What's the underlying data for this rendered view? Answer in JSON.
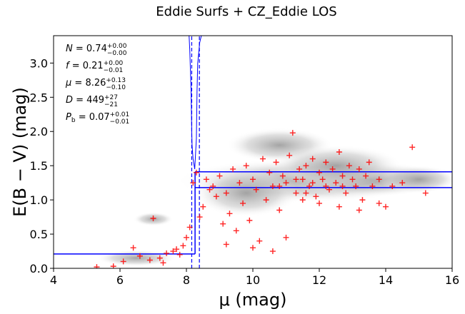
{
  "chart_data": {
    "type": "scatter",
    "title": "Eddie Surfs + CZ_Eddie LOS",
    "xlabel": "μ (mag)",
    "ylabel": "E(B − V) (mag)",
    "xlim": [
      4,
      16
    ],
    "ylim": [
      0,
      3.4
    ],
    "xticks": [
      4,
      6,
      8,
      10,
      12,
      14,
      16
    ],
    "yticks": [
      0.0,
      0.5,
      1.0,
      1.5,
      2.0,
      2.5,
      3.0
    ],
    "grid": false,
    "annotations": [
      {
        "sym": "N",
        "val": "0.74",
        "up": "+0.00",
        "lo": "−0.00"
      },
      {
        "sym": "f",
        "val": "0.21",
        "up": "+0.00",
        "lo": "−0.01"
      },
      {
        "sym": "μ",
        "val": "8.26",
        "up": "+0.13",
        "lo": "−0.10"
      },
      {
        "sym": "D",
        "val": "449",
        "up": "+27",
        "lo": "−21"
      },
      {
        "sym": "P_b",
        "val": "0.07",
        "up": "+0.01",
        "lo": "−0.01"
      }
    ],
    "step_model": {
      "color": "#0000ff",
      "mu": 8.26,
      "mu_lo": 8.16,
      "mu_hi": 8.39,
      "foreground": 0.21,
      "levels": [
        1.41,
        1.18
      ],
      "xend": 16
    },
    "posterior_curve": {
      "color": "#0000ff",
      "points": [
        [
          8.08,
          3.4
        ],
        [
          8.1,
          3.2
        ],
        [
          8.12,
          2.9
        ],
        [
          8.14,
          2.6
        ],
        [
          8.15,
          2.3
        ],
        [
          8.16,
          2.0
        ],
        [
          8.17,
          1.8
        ],
        [
          8.2,
          1.6
        ],
        [
          8.25,
          1.45
        ],
        [
          8.3,
          1.9
        ],
        [
          8.32,
          2.6
        ],
        [
          8.34,
          3.0
        ],
        [
          8.4,
          3.3
        ],
        [
          8.45,
          3.4
        ]
      ]
    },
    "marker_color": "#ff0000",
    "scatter": [
      {
        "x": 5.3,
        "y": 0.02
      },
      {
        "x": 5.8,
        "y": 0.03
      },
      {
        "x": 6.1,
        "y": 0.1
      },
      {
        "x": 6.4,
        "y": 0.3
      },
      {
        "x": 6.6,
        "y": 0.18
      },
      {
        "x": 6.9,
        "y": 0.12
      },
      {
        "x": 7.0,
        "y": 0.73
      },
      {
        "x": 7.2,
        "y": 0.15
      },
      {
        "x": 7.3,
        "y": 0.08
      },
      {
        "x": 7.4,
        "y": 0.22
      },
      {
        "x": 7.6,
        "y": 0.25
      },
      {
        "x": 7.7,
        "y": 0.28
      },
      {
        "x": 7.8,
        "y": 0.2
      },
      {
        "x": 7.9,
        "y": 0.33
      },
      {
        "x": 8.0,
        "y": 0.45
      },
      {
        "x": 8.1,
        "y": 0.6
      },
      {
        "x": 8.2,
        "y": 1.25
      },
      {
        "x": 8.3,
        "y": 1.4
      },
      {
        "x": 8.4,
        "y": 0.75
      },
      {
        "x": 8.5,
        "y": 0.9
      },
      {
        "x": 8.6,
        "y": 1.3
      },
      {
        "x": 8.7,
        "y": 1.15
      },
      {
        "x": 8.8,
        "y": 1.2
      },
      {
        "x": 8.9,
        "y": 1.05
      },
      {
        "x": 9.0,
        "y": 1.35
      },
      {
        "x": 9.1,
        "y": 0.65
      },
      {
        "x": 9.2,
        "y": 1.1
      },
      {
        "x": 9.3,
        "y": 0.8
      },
      {
        "x": 9.4,
        "y": 1.45
      },
      {
        "x": 9.5,
        "y": 0.55
      },
      {
        "x": 9.6,
        "y": 1.25
      },
      {
        "x": 9.7,
        "y": 0.95
      },
      {
        "x": 9.8,
        "y": 1.5
      },
      {
        "x": 9.9,
        "y": 0.7
      },
      {
        "x": 10.0,
        "y": 1.3
      },
      {
        "x": 10.1,
        "y": 1.15
      },
      {
        "x": 10.2,
        "y": 0.4
      },
      {
        "x": 10.3,
        "y": 1.6
      },
      {
        "x": 10.4,
        "y": 1.0
      },
      {
        "x": 10.5,
        "y": 1.4
      },
      {
        "x": 10.6,
        "y": 1.2
      },
      {
        "x": 10.7,
        "y": 1.55
      },
      {
        "x": 10.8,
        "y": 0.85
      },
      {
        "x": 10.9,
        "y": 1.35
      },
      {
        "x": 11.0,
        "y": 1.25
      },
      {
        "x": 11.1,
        "y": 1.65
      },
      {
        "x": 11.2,
        "y": 1.98
      },
      {
        "x": 11.3,
        "y": 1.1
      },
      {
        "x": 11.4,
        "y": 1.45
      },
      {
        "x": 11.5,
        "y": 1.3
      },
      {
        "x": 11.6,
        "y": 1.5
      },
      {
        "x": 11.7,
        "y": 1.2
      },
      {
        "x": 11.8,
        "y": 1.6
      },
      {
        "x": 11.9,
        "y": 1.05
      },
      {
        "x": 12.0,
        "y": 1.4
      },
      {
        "x": 12.1,
        "y": 1.3
      },
      {
        "x": 12.2,
        "y": 1.55
      },
      {
        "x": 12.3,
        "y": 1.15
      },
      {
        "x": 12.4,
        "y": 1.45
      },
      {
        "x": 12.5,
        "y": 1.25
      },
      {
        "x": 12.6,
        "y": 1.7
      },
      {
        "x": 12.7,
        "y": 1.35
      },
      {
        "x": 12.8,
        "y": 1.1
      },
      {
        "x": 12.9,
        "y": 1.5
      },
      {
        "x": 13.0,
        "y": 1.3
      },
      {
        "x": 13.1,
        "y": 1.2
      },
      {
        "x": 13.2,
        "y": 1.45
      },
      {
        "x": 13.3,
        "y": 1.0
      },
      {
        "x": 13.4,
        "y": 1.35
      },
      {
        "x": 13.5,
        "y": 1.55
      },
      {
        "x": 13.6,
        "y": 1.2
      },
      {
        "x": 13.8,
        "y": 1.3
      },
      {
        "x": 14.0,
        "y": 0.9
      },
      {
        "x": 14.2,
        "y": 1.2
      },
      {
        "x": 14.5,
        "y": 1.25
      },
      {
        "x": 14.8,
        "y": 1.77
      },
      {
        "x": 15.2,
        "y": 1.1
      },
      {
        "x": 9.2,
        "y": 0.35
      },
      {
        "x": 10.0,
        "y": 0.3
      },
      {
        "x": 10.6,
        "y": 0.25
      },
      {
        "x": 11.0,
        "y": 0.45
      },
      {
        "x": 11.5,
        "y": 1.0
      },
      {
        "x": 12.0,
        "y": 0.95
      },
      {
        "x": 12.6,
        "y": 0.9
      },
      {
        "x": 13.2,
        "y": 0.85
      },
      {
        "x": 13.8,
        "y": 0.95
      },
      {
        "x": 10.8,
        "y": 1.2
      },
      {
        "x": 11.8,
        "y": 1.25
      },
      {
        "x": 12.2,
        "y": 1.2
      },
      {
        "x": 11.3,
        "y": 1.3
      },
      {
        "x": 11.6,
        "y": 1.1
      },
      {
        "x": 12.7,
        "y": 1.2
      }
    ]
  }
}
